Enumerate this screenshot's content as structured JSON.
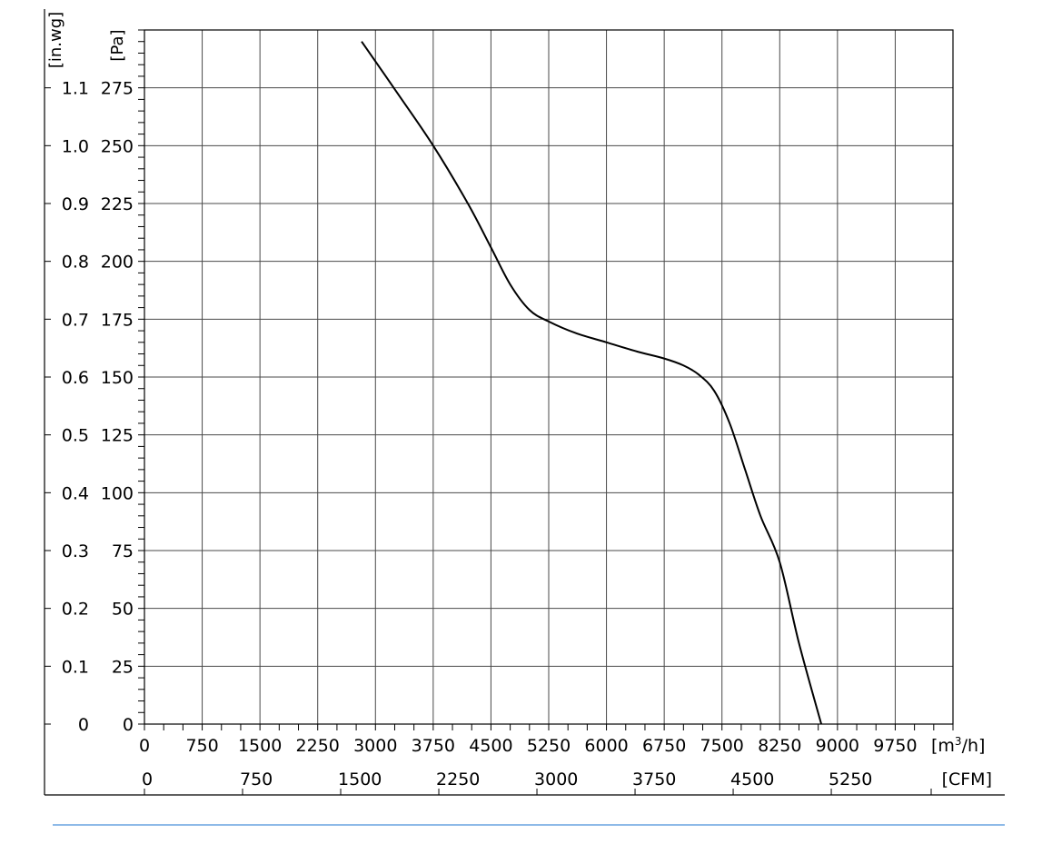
{
  "chart_data": {
    "type": "line",
    "title": "",
    "x_axis": {
      "label": "[m³/h]",
      "label_base": "[m",
      "label_sup": "3",
      "label_tail": "/h]",
      "range": [
        0,
        10500
      ],
      "ticks": [
        0,
        750,
        1500,
        2250,
        3000,
        3750,
        4500,
        5250,
        6000,
        6750,
        7500,
        8250,
        9000,
        9750
      ]
    },
    "x2_axis": {
      "label": "[CFM]",
      "ticks": [
        0,
        750,
        1500,
        2250,
        3000,
        3750,
        4500,
        5250
      ]
    },
    "y_axis": {
      "label": "[Pa]",
      "range": [
        0,
        300
      ],
      "ticks": [
        0,
        25,
        50,
        75,
        100,
        125,
        150,
        175,
        200,
        225,
        250,
        275
      ]
    },
    "y2_axis": {
      "label": "[in.wg]",
      "ticks": [
        "0",
        "0.1",
        "0.2",
        "0.3",
        "0.4",
        "0.5",
        "0.6",
        "0.7",
        "0.8",
        "0.9",
        "1.0",
        "1.1"
      ]
    },
    "grid": true,
    "series": [
      {
        "x": [
          2820,
          3300,
          3750,
          4200,
          4500,
          4750,
          5000,
          5250,
          5600,
          6000,
          6400,
          6750,
          7000,
          7200,
          7400,
          7600,
          7800,
          8000,
          8250,
          8500,
          8790
        ],
        "y": [
          295,
          272,
          250,
          225,
          206,
          190,
          179,
          174,
          169,
          165,
          161,
          158,
          155,
          151,
          144,
          130,
          110,
          90,
          70,
          35,
          0
        ]
      }
    ]
  }
}
